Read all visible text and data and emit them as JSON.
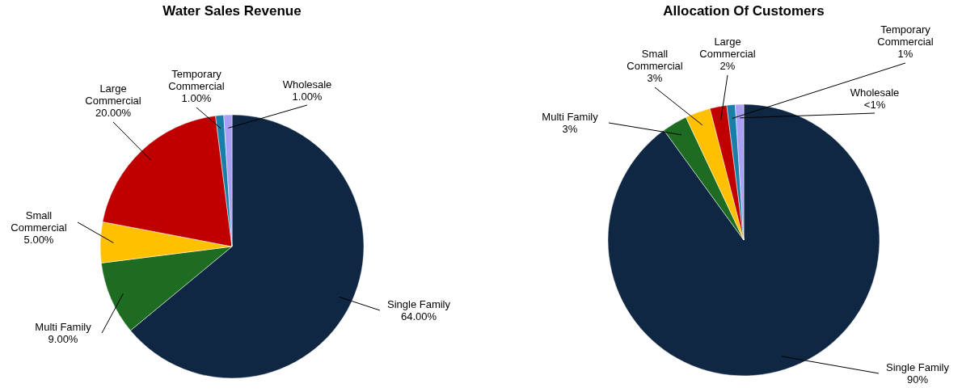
{
  "chart_data": [
    {
      "type": "pie",
      "title": "Water Sales Revenue",
      "categories": [
        "Single Family",
        "Multi Family",
        "Small Commercial",
        "Large Commercial",
        "Temporary Commercial",
        "Wholesale"
      ],
      "values": [
        64,
        9,
        5,
        20,
        1,
        1
      ],
      "colors": [
        "#0f2742",
        "#1e6b22",
        "#ffc000",
        "#c00000",
        "#1a7fa8",
        "#a9a0f5"
      ],
      "value_labels": [
        "64.00%",
        "9.00%",
        "5.00%",
        "20.00%",
        "1.00%",
        "1.00%"
      ]
    },
    {
      "type": "pie",
      "title": "Allocation Of Customers",
      "categories": [
        "Single Family",
        "Multi Family",
        "Small Commercial",
        "Large Commercial",
        "Temporary Commercial",
        "Wholesale"
      ],
      "values": [
        90,
        3,
        3,
        2,
        1,
        1
      ],
      "colors": [
        "#0f2742",
        "#1e6b22",
        "#ffc000",
        "#c00000",
        "#1a7fa8",
        "#a9a0f5"
      ],
      "value_labels": [
        "90%",
        "3%",
        "3%",
        "2%",
        "1%",
        "<1%"
      ]
    }
  ]
}
